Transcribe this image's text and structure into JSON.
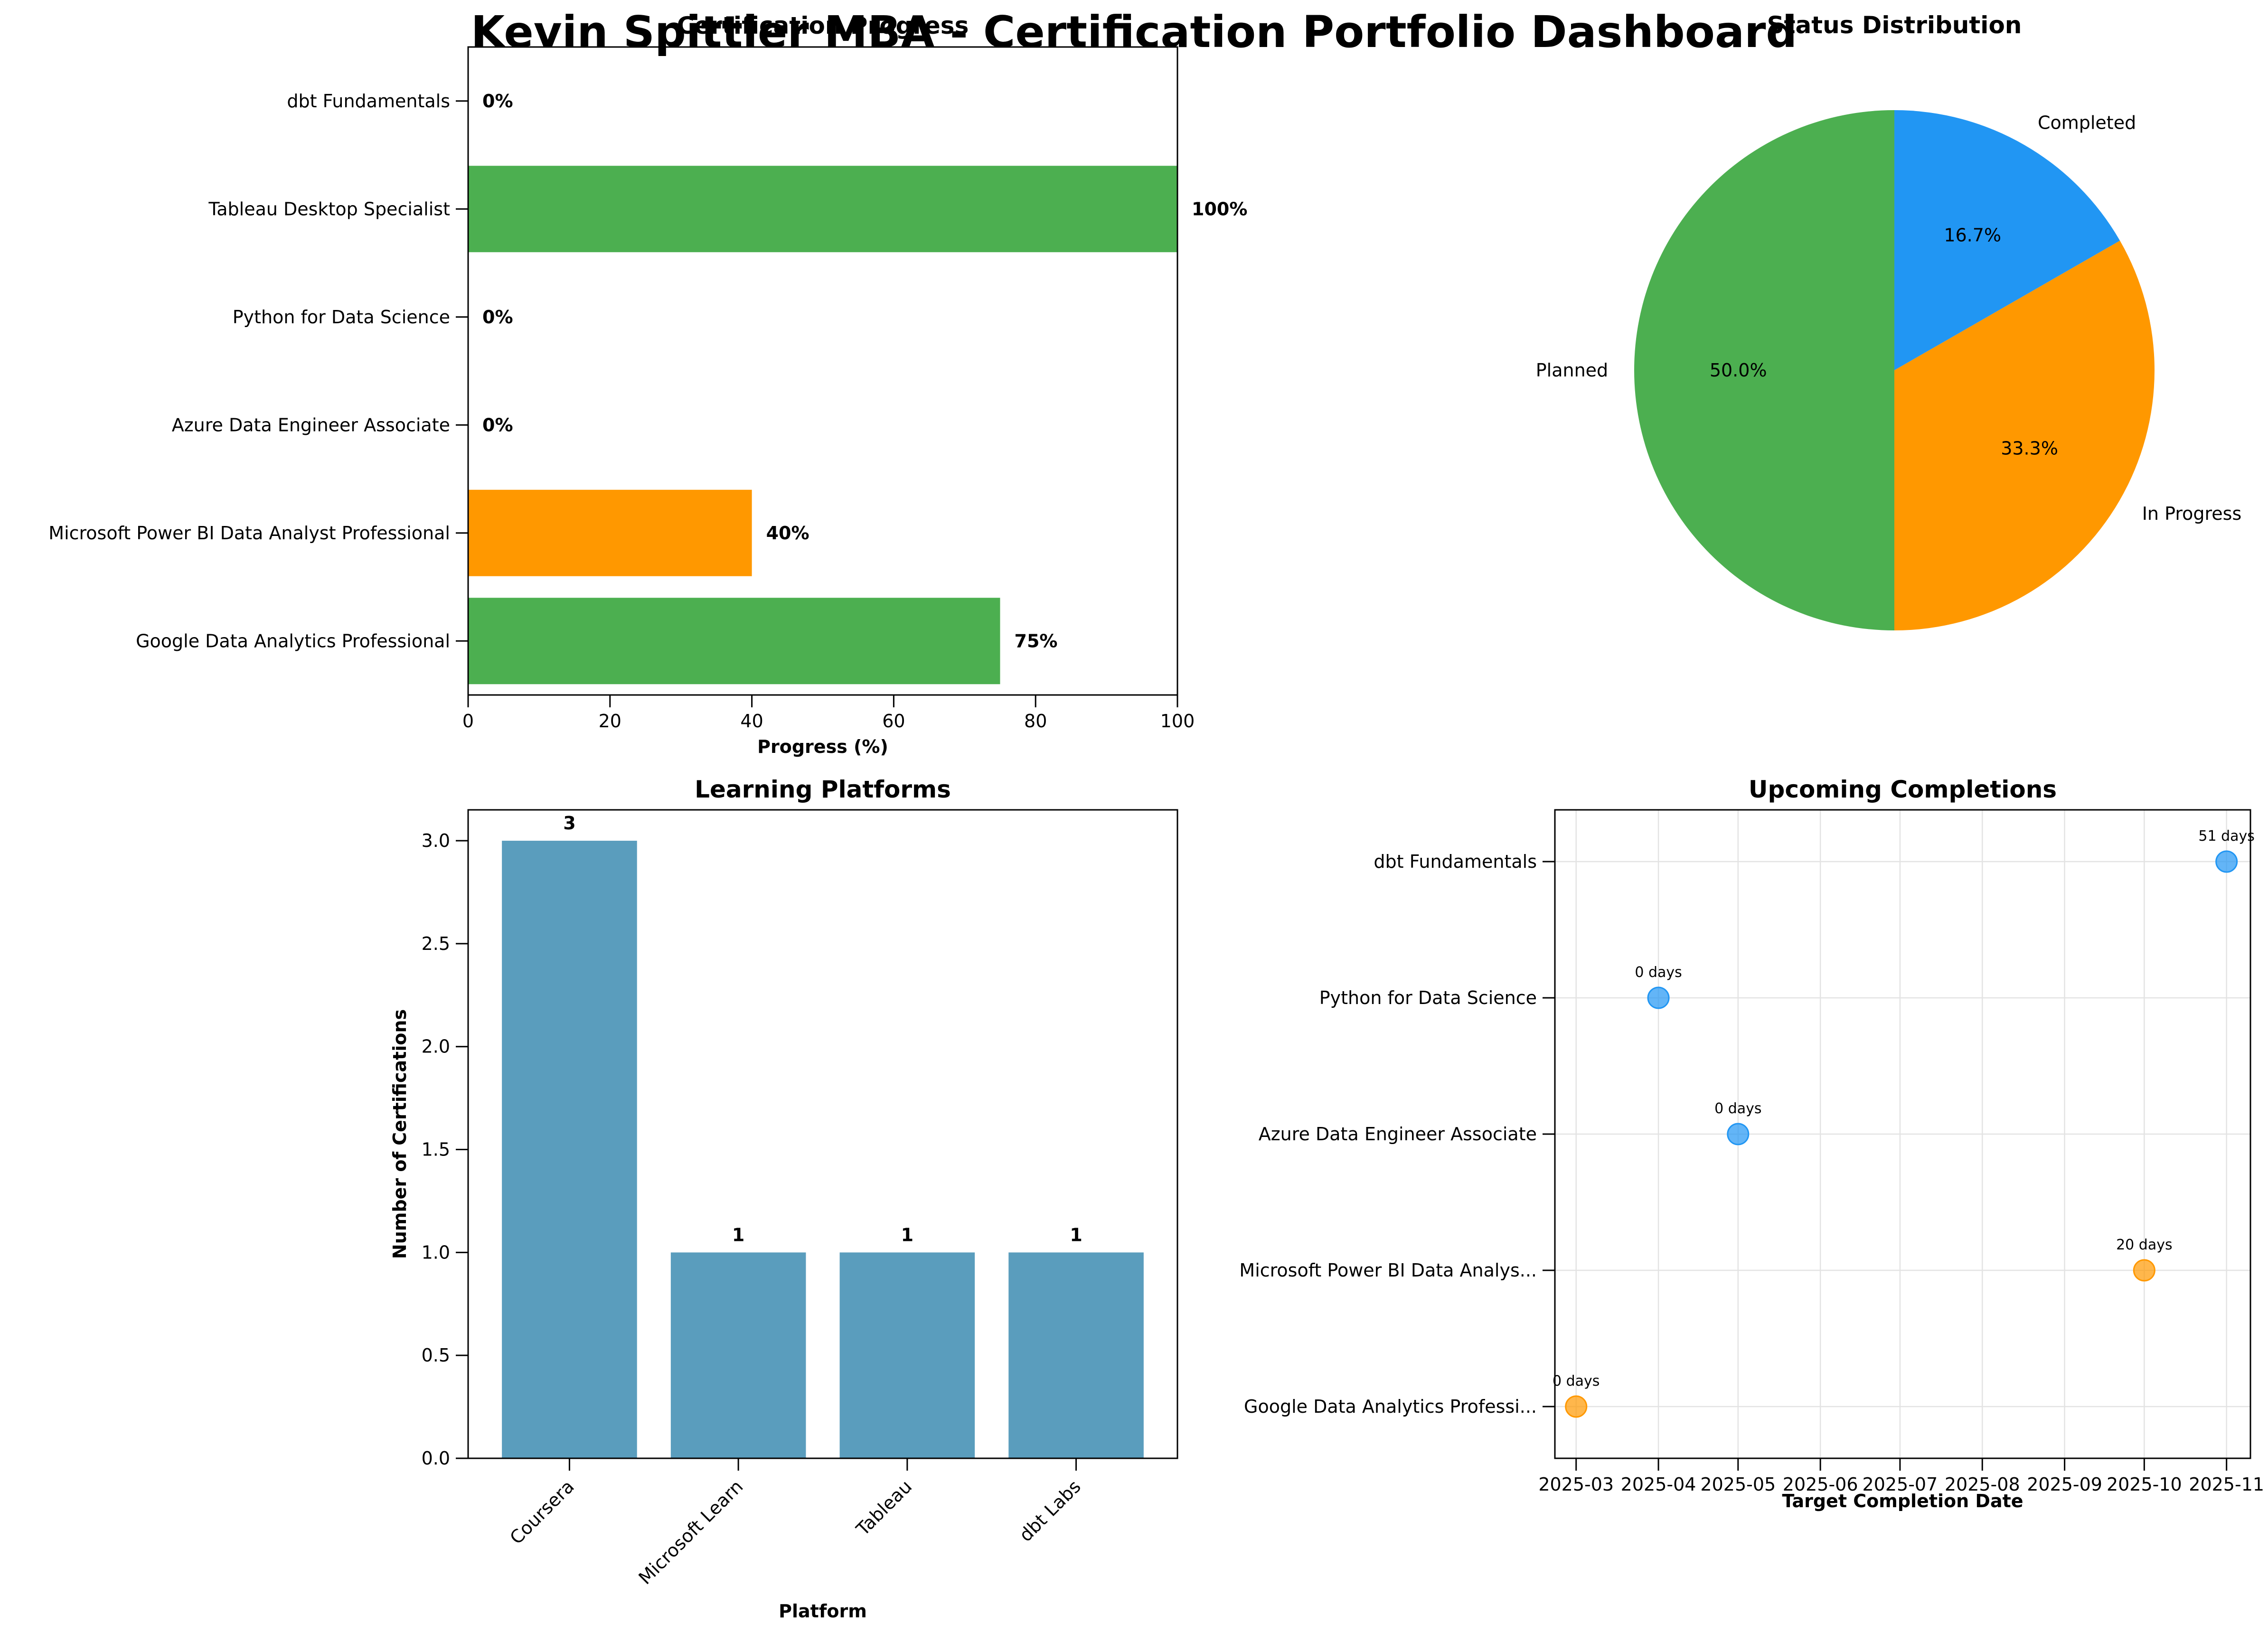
{
  "page": {
    "title": "Kevin Spittler MBA - Certification Portfolio Dashboard"
  },
  "chart_data": [
    {
      "type": "bar",
      "orientation": "horizontal",
      "title": "Certification Progress",
      "xlabel": "Progress (%)",
      "ylabel": "",
      "xlim": [
        0,
        100
      ],
      "xticks": [
        "0",
        "20",
        "40",
        "60",
        "80",
        "100"
      ],
      "categories": [
        "Google Data Analytics Professional",
        "Microsoft Power BI Data Analyst Professional",
        "Azure Data Engineer Associate",
        "Python for Data Science",
        "Tableau Desktop Specialist",
        "dbt Fundamentals"
      ],
      "values": [
        75,
        40,
        0,
        0,
        100,
        0
      ],
      "value_labels": [
        "75%",
        "40%",
        "0%",
        "0%",
        "100%",
        "0%"
      ],
      "bar_colors": [
        "#4CAF50",
        "#FF9800",
        "#2196F3",
        "#2196F3",
        "#4CAF50",
        "#2196F3"
      ]
    },
    {
      "type": "pie",
      "title": "Status Distribution",
      "labels": [
        "Completed",
        "In Progress",
        "Planned"
      ],
      "values": [
        16.7,
        33.3,
        50.0
      ],
      "pct_labels": [
        "16.7%",
        "33.3%",
        "50.0%"
      ],
      "colors": [
        "#2196F3",
        "#FF9800",
        "#4CAF50"
      ],
      "start_angle_deg": 90,
      "direction": "clockwise"
    },
    {
      "type": "bar",
      "title": "Learning Platforms",
      "xlabel": "Platform",
      "ylabel": "Number of Certifications",
      "categories": [
        "Coursera",
        "Microsoft Learn",
        "Tableau",
        "dbt Labs"
      ],
      "values": [
        3,
        1,
        1,
        1
      ],
      "value_labels": [
        "3",
        "1",
        "1",
        "1"
      ],
      "ylim": [
        0,
        3.15
      ],
      "yticks": [
        "0.0",
        "0.5",
        "1.0",
        "1.5",
        "2.0",
        "2.5",
        "3.0"
      ],
      "color": "#5A9DBD"
    },
    {
      "type": "scatter",
      "title": "Upcoming Completions",
      "xlabel": "Target Completion Date",
      "ylabel": "",
      "grid": true,
      "categories": [
        "Google Data Analytics Professi...",
        "Microsoft Power BI Data Analys...",
        "Azure Data Engineer Associate",
        "Python for Data Science",
        "dbt Fundamentals"
      ],
      "x": [
        "2025-03-01",
        "2025-10-01",
        "2025-05-01",
        "2025-04-01",
        "2025-11-01"
      ],
      "point_labels": [
        "0 days",
        "20 days",
        "0 days",
        "0 days",
        "51 days"
      ],
      "point_colors": [
        "#FF9800",
        "#FF9800",
        "#2196F3",
        "#2196F3",
        "#2196F3"
      ],
      "xticks": [
        "2025-03",
        "2025-04",
        "2025-05",
        "2025-06",
        "2025-07",
        "2025-08",
        "2025-09",
        "2025-10",
        "2025-11"
      ],
      "xlim": [
        "2025-02-21",
        "2025-11-10"
      ]
    }
  ]
}
